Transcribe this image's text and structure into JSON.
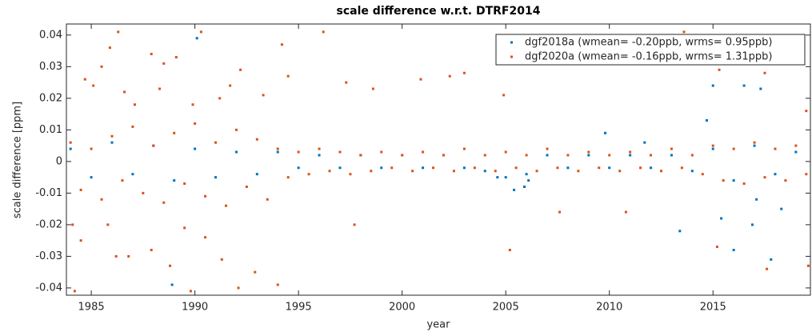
{
  "chart_data": {
    "type": "scatter",
    "title": "scale difference w.r.t. DTRF2014",
    "xlabel": "year",
    "ylabel": "scale difference [ppm]",
    "xlim": [
      1983.8,
      2019.7
    ],
    "ylim": [
      -0.0423,
      0.0435
    ],
    "xticks": [
      1985,
      1990,
      1995,
      2000,
      2005,
      2010,
      2015
    ],
    "yticks": [
      -0.04,
      -0.03,
      -0.02,
      -0.01,
      0,
      0.01,
      0.02,
      0.03,
      0.04
    ],
    "legend": "upper right",
    "series": [
      {
        "name": "dgf2018a (wmean= -0.20ppb, wrms= 0.95ppb)",
        "color": "#0072bd",
        "x": [
          1990.1,
          1988.9,
          2013.4,
          2015,
          2016.5,
          2017.3,
          2017.8,
          2014.7,
          2016.9,
          2017.1,
          2018.3,
          2015.4,
          2016,
          2009.8,
          2011.7,
          2005.4,
          2005.9,
          2006.1,
          2004.6,
          1984,
          1985,
          1986,
          1987,
          1988,
          1989,
          1990,
          1991,
          1992,
          1993,
          1994,
          1995,
          1996,
          1997,
          1998,
          1999,
          2000,
          2001,
          2002,
          2003,
          2004,
          2005,
          2006,
          2007,
          2008,
          2009,
          2010,
          2011,
          2012,
          2013,
          2014,
          2015,
          2016,
          2017,
          2018,
          2019
        ],
        "values": [
          0.039,
          -0.039,
          -0.022,
          0.024,
          0.024,
          0.023,
          -0.031,
          0.013,
          -0.02,
          -0.012,
          -0.015,
          -0.018,
          -0.028,
          0.009,
          0.006,
          -0.009,
          -0.008,
          -0.006,
          -0.005,
          0.004,
          -0.005,
          0.006,
          -0.004,
          0.005,
          -0.006,
          0.004,
          -0.005,
          0.003,
          -0.004,
          0.003,
          -0.002,
          0.002,
          -0.002,
          0.002,
          -0.002,
          0.002,
          -0.002,
          0.002,
          -0.002,
          -0.003,
          -0.005,
          -0.004,
          0.002,
          -0.002,
          0.002,
          -0.002,
          0.002,
          -0.002,
          0.002,
          -0.003,
          0.004,
          -0.006,
          0.005,
          -0.004,
          0.003
        ]
      },
      {
        "name": "dgf2020a (wmean= -0.16ppb, wrms= 1.31ppb)",
        "color": "#d95319",
        "x": [
          1984.2,
          1984.7,
          1985.1,
          1985.5,
          1985.9,
          1986.3,
          1986.6,
          1987.1,
          1987.9,
          1988.3,
          1988.5,
          1989.1,
          1989.9,
          1990.3,
          1991.2,
          1991.7,
          1992.2,
          1993.3,
          1994.2,
          1994.5,
          1996.2,
          1997.3,
          1998.6,
          2000.9,
          2002.3,
          2003,
          2004.9,
          2013.6,
          2015.3,
          2017.5,
          2019.5,
          1984.1,
          1984.5,
          1985.8,
          1986.2,
          1986.8,
          1987.9,
          1988.8,
          1989.5,
          1989.8,
          1990.5,
          1991.3,
          1992.1,
          1992.9,
          1994,
          1997.7,
          2005.2,
          2007.6,
          2010.8,
          2015.2,
          2017.6,
          2019.6,
          1984,
          1984.5,
          1985,
          1985.5,
          1986,
          1986.5,
          1987,
          1987.5,
          1988,
          1988.5,
          1989,
          1989.5,
          1990,
          1990.5,
          1991,
          1991.5,
          1992,
          1992.5,
          1993,
          1993.5,
          1994,
          1994.5,
          1995,
          1995.5,
          1996,
          1996.5,
          1997,
          1997.5,
          1998,
          1998.5,
          1999,
          1999.5,
          2000,
          2000.5,
          2001,
          2001.5,
          2002,
          2002.5,
          2003,
          2003.5,
          2004,
          2004.5,
          2005,
          2005.5,
          2006,
          2006.5,
          2007,
          2007.5,
          2008,
          2008.5,
          2009,
          2009.5,
          2010,
          2010.5,
          2011,
          2011.5,
          2012,
          2012.5,
          2013,
          2013.5,
          2014,
          2014.5,
          2015,
          2015.5,
          2016,
          2016.5,
          2017,
          2017.5,
          2018,
          2018.5,
          2019,
          2019.5
        ],
        "values": [
          -0.041,
          0.026,
          0.024,
          0.03,
          0.036,
          0.041,
          0.022,
          0.018,
          0.034,
          0.023,
          0.031,
          0.033,
          0.018,
          0.041,
          0.02,
          0.024,
          0.029,
          0.021,
          0.037,
          0.027,
          0.041,
          0.025,
          0.023,
          0.026,
          0.027,
          0.028,
          0.021,
          0.041,
          0.029,
          0.028,
          0.016,
          -0.02,
          -0.025,
          -0.02,
          -0.03,
          -0.03,
          -0.028,
          -0.033,
          -0.021,
          -0.041,
          -0.024,
          -0.031,
          -0.04,
          -0.035,
          -0.039,
          -0.02,
          -0.028,
          -0.016,
          -0.016,
          -0.027,
          -0.034,
          -0.033,
          0.006,
          -0.009,
          0.004,
          -0.012,
          0.008,
          -0.006,
          0.011,
          -0.01,
          0.005,
          -0.013,
          0.009,
          -0.007,
          0.012,
          -0.011,
          0.006,
          -0.014,
          0.01,
          -0.008,
          0.007,
          -0.012,
          0.004,
          -0.005,
          0.003,
          -0.004,
          0.004,
          -0.003,
          0.003,
          -0.004,
          0.002,
          -0.003,
          0.003,
          -0.002,
          0.002,
          -0.003,
          0.003,
          -0.002,
          0.002,
          -0.003,
          0.004,
          -0.002,
          0.002,
          -0.003,
          0.003,
          -0.002,
          0.002,
          -0.003,
          0.004,
          -0.002,
          0.002,
          -0.003,
          0.003,
          -0.002,
          0.002,
          -0.003,
          0.003,
          -0.002,
          0.002,
          -0.003,
          0.004,
          -0.002,
          0.002,
          -0.004,
          0.005,
          -0.006,
          0.004,
          -0.007,
          0.006,
          -0.005,
          0.004,
          -0.006,
          0.005,
          -0.004
        ]
      }
    ]
  }
}
